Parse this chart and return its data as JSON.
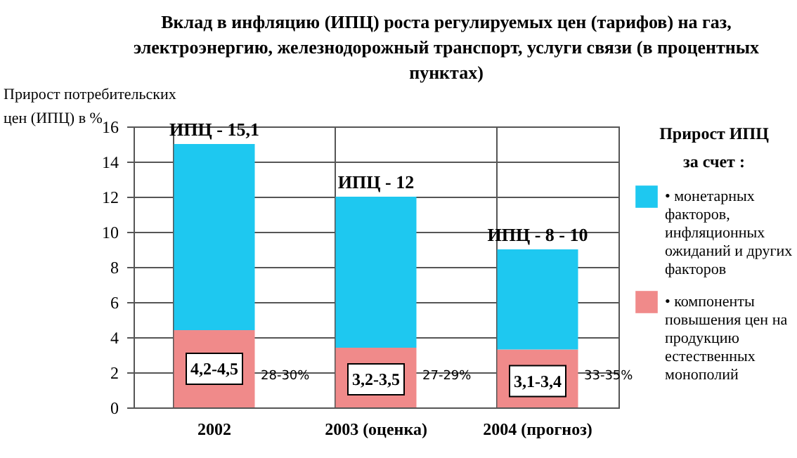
{
  "chart_data": {
    "type": "bar",
    "title": "Вклад в инфляцию (ИПЦ) роста регулируемых цен (тарифов) на газ, электроэнергию, железнодорожный транспорт, услуги связи (в процентных пунктах)",
    "ylabel": "Прирост потребительских цен (ИПЦ) в %",
    "legend_title": "Прирост ИПЦ за счет :",
    "categories": [
      "2002",
      "2003 (оценка)",
      "2004 (прогноз)"
    ],
    "stacked": true,
    "series": [
      {
        "name": "• компоненты повышения цен на продукцию естественных монополий",
        "color": "#f08a8a",
        "values": [
          4.4,
          3.4,
          3.3
        ]
      },
      {
        "name": "• монетарных факторов, инфляционных ожиданий и других факторов",
        "color": "#1ec8f0",
        "values": [
          10.6,
          8.6,
          5.7
        ]
      }
    ],
    "ylim": [
      0,
      16
    ],
    "yticks": [
      0,
      2,
      4,
      6,
      8,
      10,
      12,
      14,
      16
    ],
    "grid": true,
    "legend": "right",
    "annotations": [
      {
        "text": "ИПЦ - 15,1",
        "x": "2002",
        "y": 15
      },
      {
        "text": "4,2-4,5",
        "x": "2002",
        "y": 2.2
      },
      "28-30%",
      {
        "text": "ИПЦ - 12",
        "x": "2003 (оценка)",
        "y": 12
      },
      {
        "text": "3,2-3,5",
        "x": "2003 (оценка)",
        "y": 1.6
      },
      "27-29%",
      {
        "text": "ИПЦ - 8 - 10",
        "x": "2004 (прогноз)",
        "y": 9
      },
      {
        "text": "3,1-3,4",
        "x": "2004 (прогноз)",
        "y": 1.5
      },
      "33-35%"
    ]
  }
}
